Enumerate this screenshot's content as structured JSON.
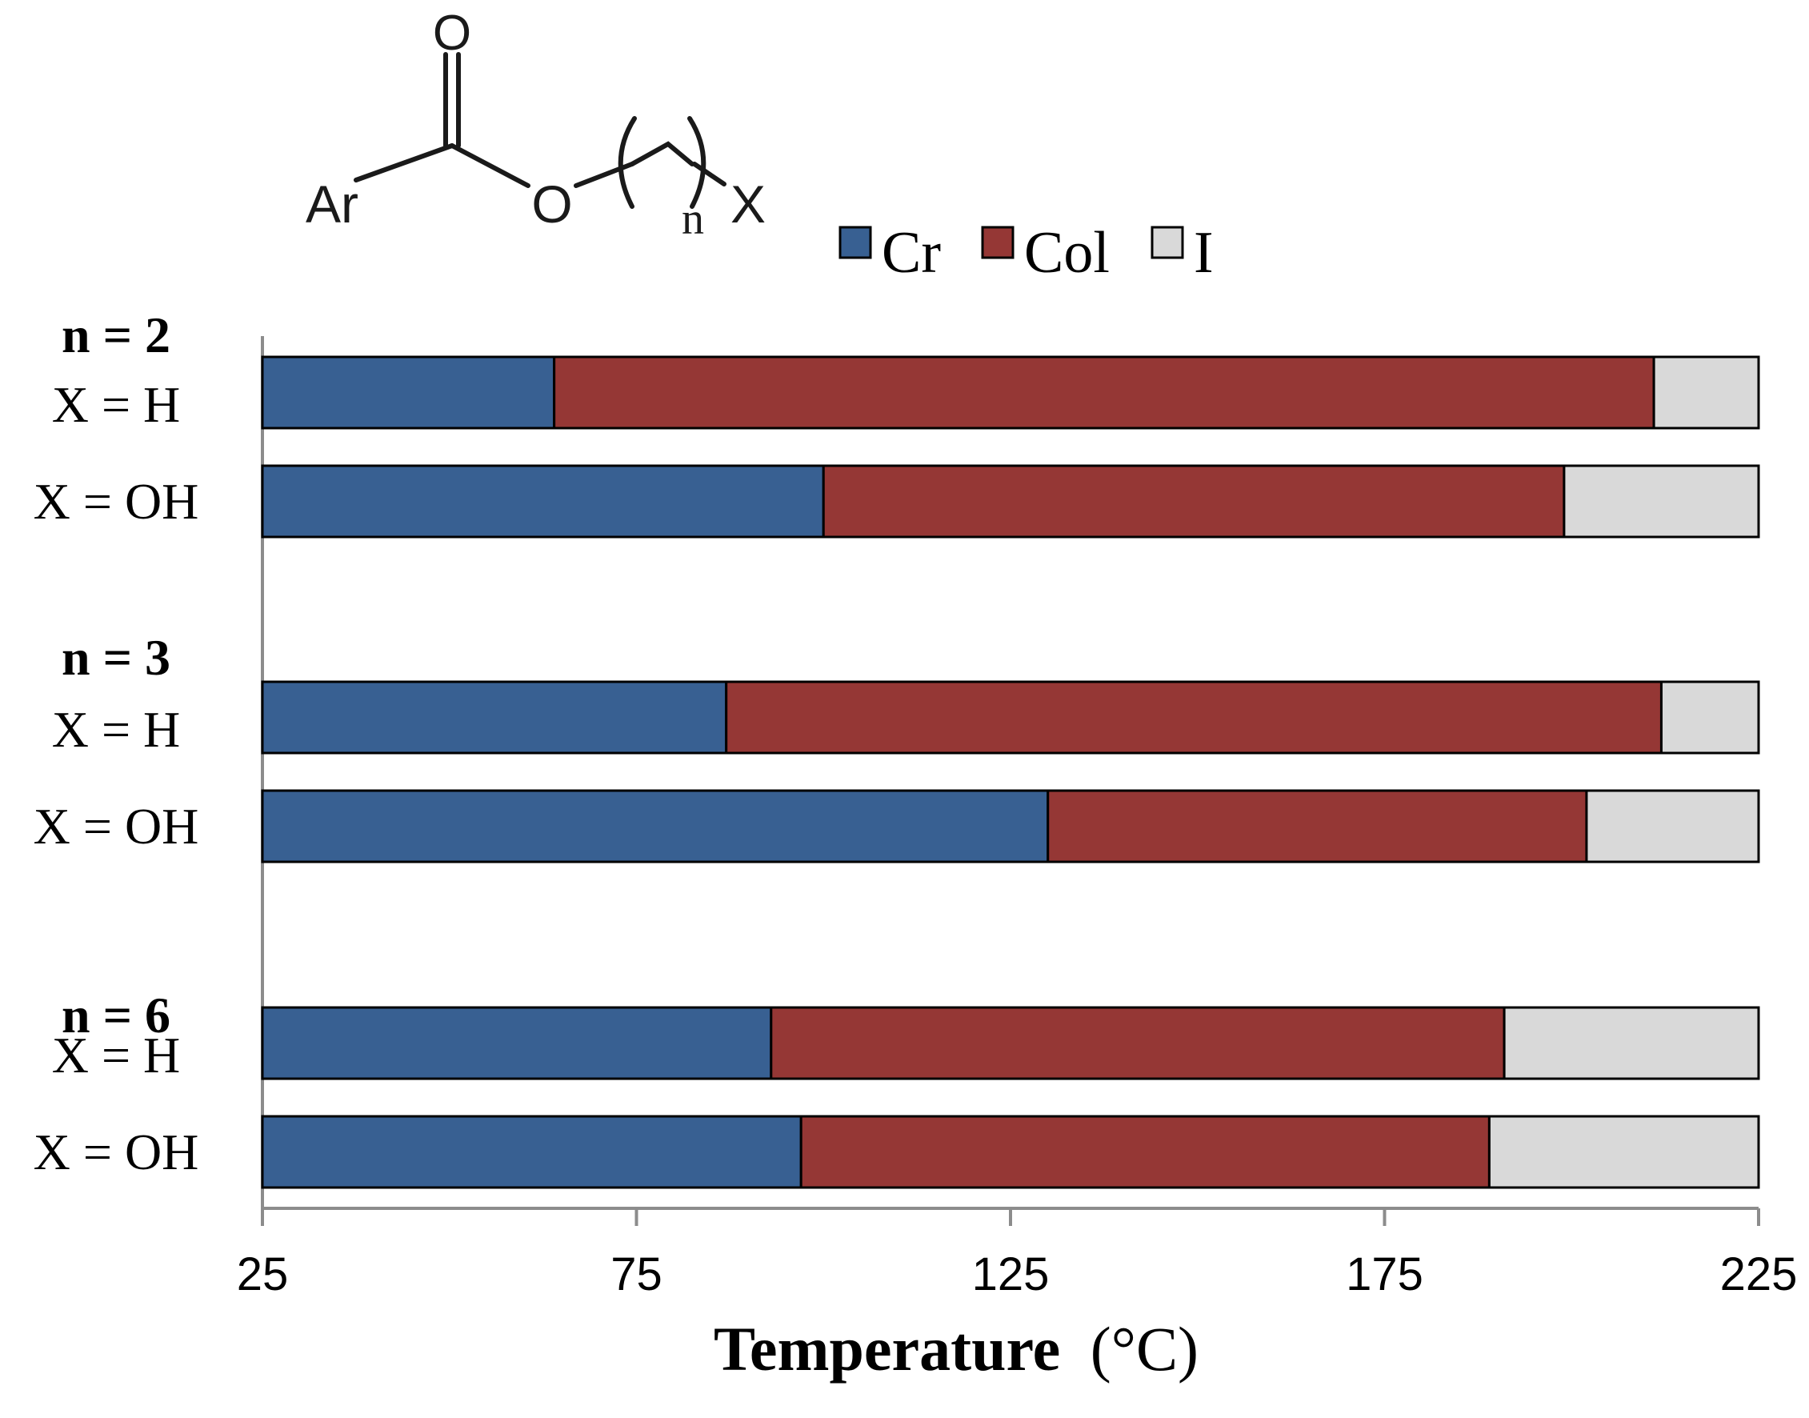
{
  "chart_data": {
    "type": "bar",
    "orientation": "horizontal",
    "stacked": true,
    "structure": {
      "group": "Ar",
      "chain_subscript": "n",
      "end_group": "X",
      "carbonyl_oxygen": "O",
      "ester_oxygen": "O"
    },
    "xlabel": "Temperature",
    "xlabel_unit": "(°C)",
    "xlim": [
      25,
      225
    ],
    "xticks": [
      25,
      75,
      125,
      175,
      225
    ],
    "grid": false,
    "legend_position": "top-right",
    "series": [
      {
        "name": "Cr",
        "color": "#386092"
      },
      {
        "name": "Col",
        "color": "#953735"
      },
      {
        "name": "I",
        "color": "#d9d9d9"
      }
    ],
    "groups": [
      {
        "label": "n = 2",
        "rows": [
          {
            "label": "X = H",
            "cr_col": 64,
            "col_i": 211
          },
          {
            "label": "X = OH",
            "cr_col": 100,
            "col_i": 199
          }
        ]
      },
      {
        "label": "n = 3",
        "rows": [
          {
            "label": "X = H",
            "cr_col": 87,
            "col_i": 212
          },
          {
            "label": "X = OH",
            "cr_col": 130,
            "col_i": 202
          }
        ]
      },
      {
        "label": "n = 6",
        "rows": [
          {
            "label": "X = H",
            "cr_col": 93,
            "col_i": 191
          },
          {
            "label": "X = OH",
            "cr_col": 97,
            "col_i": 189
          }
        ]
      }
    ]
  }
}
